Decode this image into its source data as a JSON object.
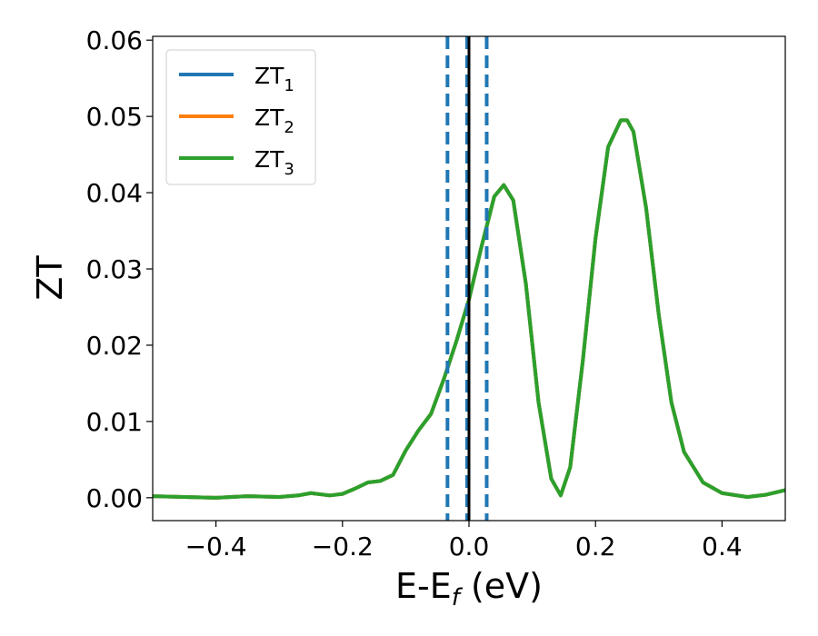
{
  "chart_data": {
    "type": "line",
    "xlabel": {
      "main": "E-E",
      "sub": "f",
      "suffix": " (eV)"
    },
    "ylabel": "ZT",
    "xlim": [
      -0.5,
      0.5
    ],
    "ylim": [
      -0.003,
      0.0605
    ],
    "xticks": [
      -0.4,
      -0.2,
      0.0,
      0.2,
      0.4
    ],
    "xtick_labels": [
      "−0.4",
      "−0.2",
      "0.0",
      "0.2",
      "0.4"
    ],
    "yticks": [
      0.0,
      0.01,
      0.02,
      0.03,
      0.04,
      0.05,
      0.06
    ],
    "ytick_labels": [
      "0.00",
      "0.01",
      "0.02",
      "0.03",
      "0.04",
      "0.05",
      "0.06"
    ],
    "grid": false,
    "legend": {
      "placement": "top-left",
      "entries": [
        {
          "main": "ZT",
          "sub": "1",
          "color": "#1f77b4"
        },
        {
          "main": "ZT",
          "sub": "2",
          "color": "#ff7f0e"
        },
        {
          "main": "ZT",
          "sub": "3",
          "color": "#2ca02c"
        }
      ]
    },
    "vlines": [
      {
        "x": -0.034,
        "style": "dashed",
        "color": "#1f77b4"
      },
      {
        "x": -0.003,
        "style": "dashed",
        "color": "#1f77b4"
      },
      {
        "x": 0.028,
        "style": "dashed",
        "color": "#1f77b4"
      },
      {
        "x": 0.0,
        "style": "solid",
        "color": "#000000"
      }
    ],
    "x": [
      -0.5,
      -0.45,
      -0.4,
      -0.35,
      -0.3,
      -0.27,
      -0.25,
      -0.22,
      -0.2,
      -0.18,
      -0.16,
      -0.14,
      -0.12,
      -0.1,
      -0.08,
      -0.06,
      -0.04,
      -0.02,
      0.0,
      0.02,
      0.04,
      0.055,
      0.07,
      0.09,
      0.11,
      0.13,
      0.145,
      0.16,
      0.18,
      0.2,
      0.22,
      0.24,
      0.25,
      0.26,
      0.28,
      0.3,
      0.32,
      0.34,
      0.37,
      0.4,
      0.44,
      0.47,
      0.5
    ],
    "series": [
      {
        "name": "ZT1",
        "color": "#1f77b4",
        "values": [
          0.0002,
          0.0001,
          0.0,
          0.0002,
          0.0001,
          0.0003,
          0.0006,
          0.0003,
          0.0005,
          0.0012,
          0.002,
          0.0022,
          0.003,
          0.0062,
          0.0088,
          0.011,
          0.0155,
          0.0205,
          0.026,
          0.033,
          0.0395,
          0.041,
          0.039,
          0.028,
          0.0125,
          0.0025,
          0.0003,
          0.004,
          0.018,
          0.034,
          0.046,
          0.0495,
          0.0495,
          0.048,
          0.038,
          0.024,
          0.0125,
          0.006,
          0.002,
          0.0006,
          0.0001,
          0.0004,
          0.001
        ]
      },
      {
        "name": "ZT2",
        "color": "#ff7f0e",
        "values": [
          0.0002,
          0.0001,
          0.0,
          0.0002,
          0.0001,
          0.0003,
          0.0006,
          0.0003,
          0.0005,
          0.0012,
          0.002,
          0.0022,
          0.003,
          0.0062,
          0.0088,
          0.011,
          0.0155,
          0.0205,
          0.026,
          0.033,
          0.0395,
          0.041,
          0.039,
          0.028,
          0.0125,
          0.0025,
          0.0003,
          0.004,
          0.018,
          0.034,
          0.046,
          0.0495,
          0.0495,
          0.048,
          0.038,
          0.024,
          0.0125,
          0.006,
          0.002,
          0.0006,
          0.0001,
          0.0004,
          0.001
        ]
      },
      {
        "name": "ZT3",
        "color": "#2ca02c",
        "values": [
          0.0002,
          0.0001,
          0.0,
          0.0002,
          0.0001,
          0.0003,
          0.0006,
          0.0003,
          0.0005,
          0.0012,
          0.002,
          0.0022,
          0.003,
          0.0062,
          0.0088,
          0.011,
          0.0155,
          0.0205,
          0.026,
          0.033,
          0.0395,
          0.041,
          0.039,
          0.028,
          0.0125,
          0.0025,
          0.0003,
          0.004,
          0.018,
          0.034,
          0.046,
          0.0495,
          0.0495,
          0.048,
          0.038,
          0.024,
          0.0125,
          0.006,
          0.002,
          0.0006,
          0.0001,
          0.0004,
          0.001
        ]
      }
    ]
  }
}
